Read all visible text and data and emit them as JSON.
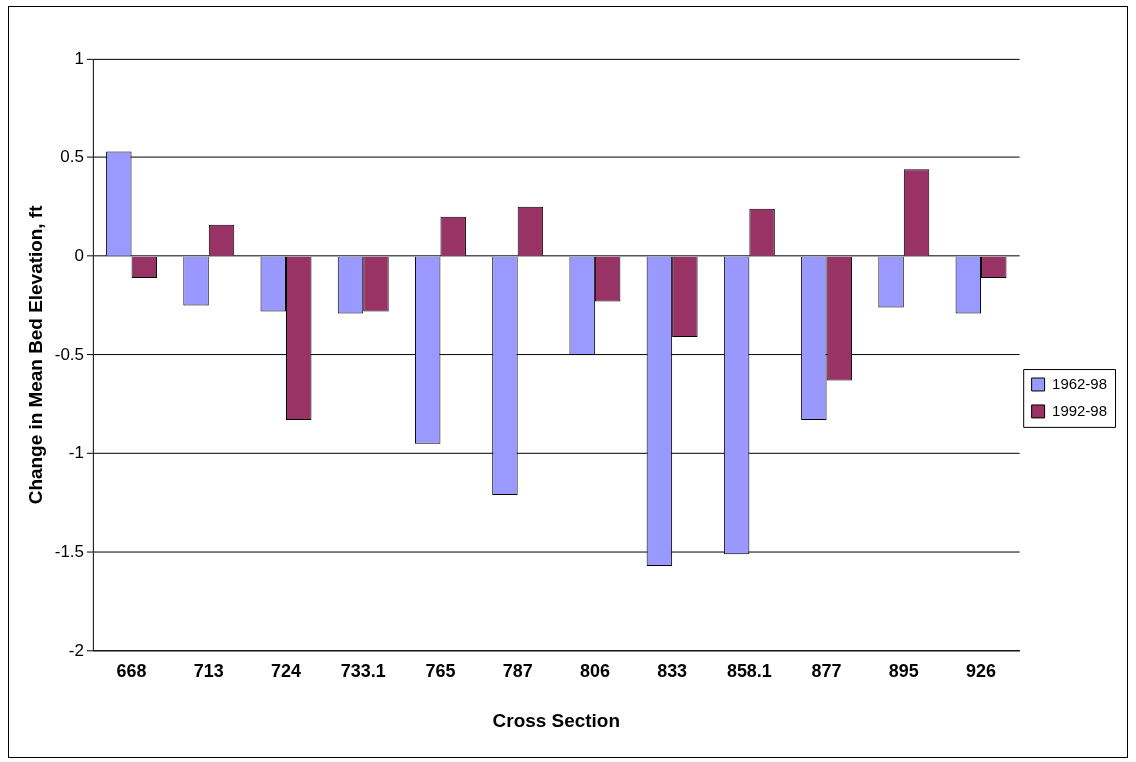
{
  "chart_data": {
    "type": "bar",
    "xlabel": "Cross Section",
    "ylabel": "Change in Mean Bed Elevation, ft",
    "categories": [
      "668",
      "713",
      "724",
      "733.1",
      "765",
      "787",
      "806",
      "833",
      "858.1",
      "877",
      "895",
      "926"
    ],
    "series": [
      {
        "name": "1962-98",
        "color": "#9999ff",
        "values": [
          0.53,
          -0.25,
          -0.28,
          -0.29,
          -0.95,
          -1.21,
          -0.5,
          -1.57,
          -1.51,
          -0.83,
          -0.26,
          -0.29
        ]
      },
      {
        "name": "1992-98",
        "color": "#993366",
        "values": [
          -0.11,
          0.16,
          -0.83,
          -0.28,
          0.2,
          0.25,
          -0.23,
          -0.41,
          0.24,
          -0.63,
          0.44,
          -0.11
        ]
      }
    ],
    "ylim": [
      -2,
      1
    ],
    "yticks": [
      -2,
      -1.5,
      -1,
      -0.5,
      0,
      0.5,
      1
    ],
    "grid": "y",
    "legend": "right"
  }
}
